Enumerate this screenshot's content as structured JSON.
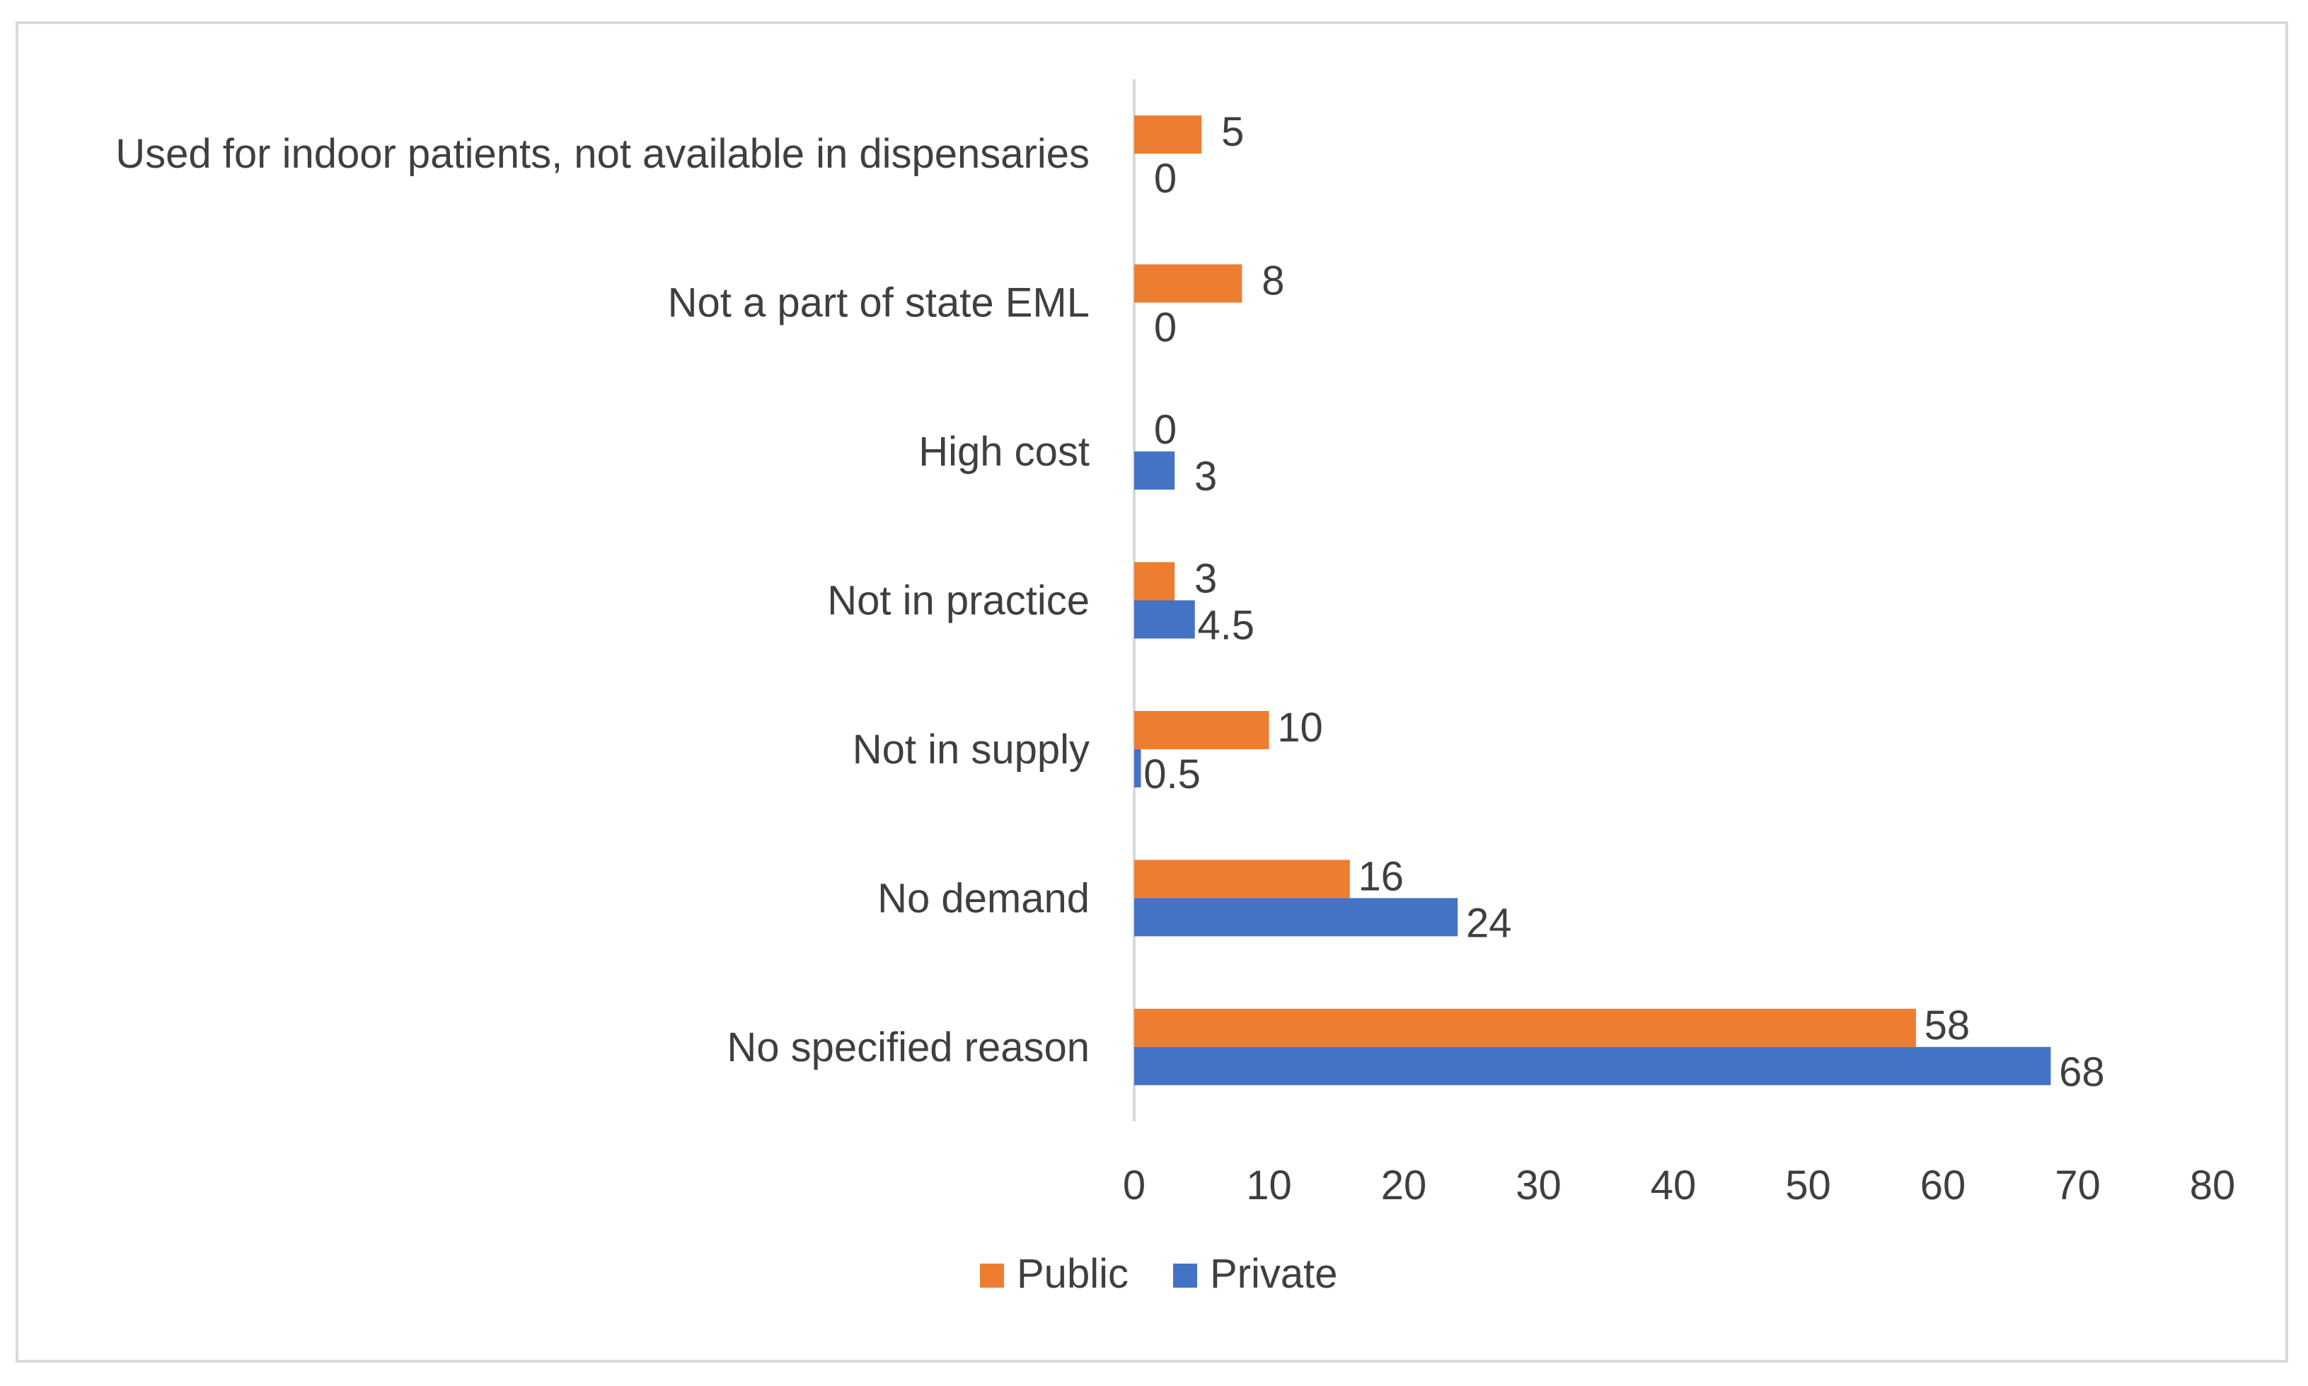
{
  "chart_data": {
    "type": "bar",
    "orientation": "horizontal",
    "title": "",
    "xlabel": "",
    "ylabel": "",
    "xlim": [
      0,
      80
    ],
    "xticks": [
      0,
      10,
      20,
      30,
      40,
      50,
      60,
      70,
      80
    ],
    "categories": [
      "Used for indoor patients, not available in dispensaries",
      "Not a part of state EML",
      "High cost",
      "Not in practice",
      "Not in supply",
      "No demand",
      "No specified reason"
    ],
    "series": [
      {
        "name": "Public",
        "color": "#ed7d31",
        "values": [
          5,
          8,
          0,
          3,
          10,
          16,
          58
        ]
      },
      {
        "name": "Private",
        "color": "#4472c4",
        "values": [
          0,
          0,
          3,
          4.5,
          0.5,
          24,
          68
        ]
      }
    ],
    "grid": false,
    "legend_position": "bottom"
  }
}
